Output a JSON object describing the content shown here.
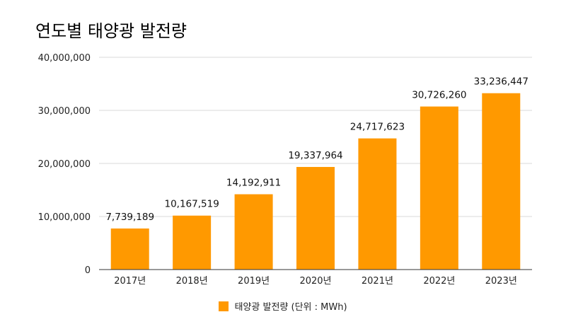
{
  "colors": {
    "bar": "#ff9900",
    "grid": "#d9d9d9",
    "axis": "#333333"
  },
  "chart_data": {
    "type": "bar",
    "title": "연도별 태양광 발전량",
    "categories": [
      "2017년",
      "2018년",
      "2019년",
      "2020년",
      "2021년",
      "2022년",
      "2023년"
    ],
    "series": [
      {
        "name": "태양광 발전량 (단위 : MWh)",
        "values": [
          7739189,
          10167519,
          14192911,
          19337964,
          24717623,
          30726260,
          33236447
        ]
      }
    ],
    "data_labels": [
      "7,739,189",
      "10,167,519",
      "14,192,911",
      "19,337,964",
      "24,717,623",
      "30,726,260",
      "33,236,447"
    ],
    "ylim": [
      0,
      40000000
    ],
    "yticks": [
      0,
      10000000,
      20000000,
      30000000,
      40000000
    ],
    "ytick_labels": [
      "0",
      "10,000,000",
      "20,000,000",
      "30,000,000",
      "40,000,000"
    ],
    "xlabel": "",
    "ylabel": "",
    "legend_position": "bottom",
    "grid": true
  }
}
